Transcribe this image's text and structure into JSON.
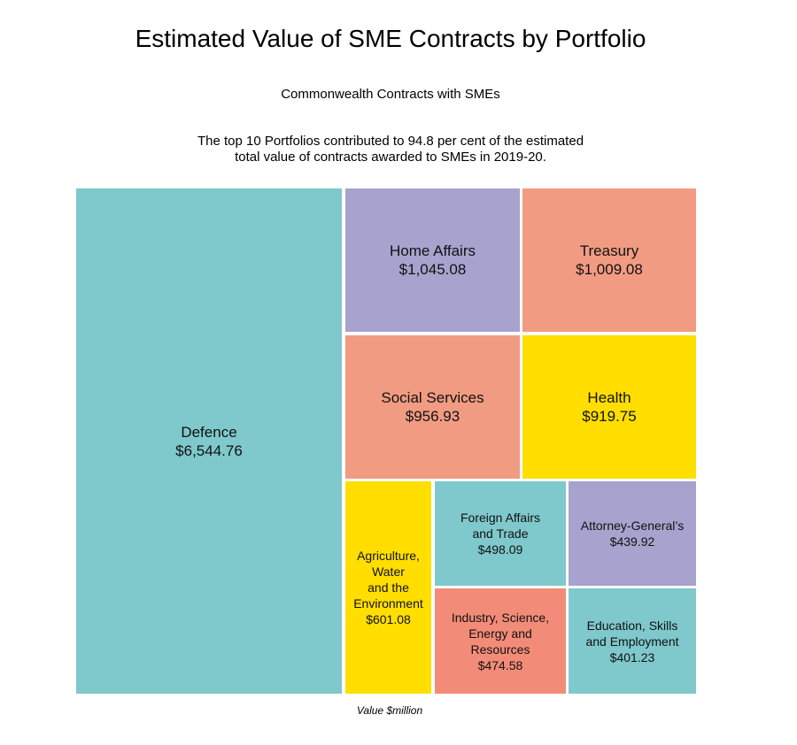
{
  "chart_data": {
    "type": "treemap",
    "title": "Estimated Value of SME Contracts by Portfolio",
    "subtitle": "Commonwealth Contracts with SMEs",
    "description": [
      "The top 10 Portfolios contributed to 94.8 per cent of the estimated",
      "total value of contracts awarded to SMEs in 2019-20."
    ],
    "value_label": "Value $million",
    "items": [
      {
        "name": "Defence",
        "value": 6544.76,
        "label": "$6,544.76",
        "color": "#7fc8cc"
      },
      {
        "name": "Home Affairs",
        "value": 1045.08,
        "label": "$1,045.08",
        "color": "#a7a3ce"
      },
      {
        "name": "Treasury",
        "value": 1009.08,
        "label": "$1,009.08",
        "color": "#f29b83"
      },
      {
        "name": "Social Services",
        "value": 956.93,
        "label": "$956.93",
        "color": "#f29b83"
      },
      {
        "name": "Health",
        "value": 919.75,
        "label": "$919.75",
        "color": "#ffde00"
      },
      {
        "name": "Agriculture,\nWater\nand the\nEnvironment",
        "value": 601.08,
        "label": "$601.08",
        "color": "#ffde00"
      },
      {
        "name": "Foreign Affairs\nand Trade",
        "value": 498.09,
        "label": "$498.09",
        "color": "#7fc8cc"
      },
      {
        "name": "Attorney-General’s",
        "value": 439.92,
        "label": "$439.92",
        "color": "#a7a3ce"
      },
      {
        "name": "Industry, Science,\nEnergy and\nResources",
        "value": 474.58,
        "label": "$474.58",
        "color": "#f28c78"
      },
      {
        "name": "Education, Skills\nand Employment",
        "value": 401.23,
        "label": "$401.23",
        "color": "#7fc8cc"
      }
    ]
  }
}
